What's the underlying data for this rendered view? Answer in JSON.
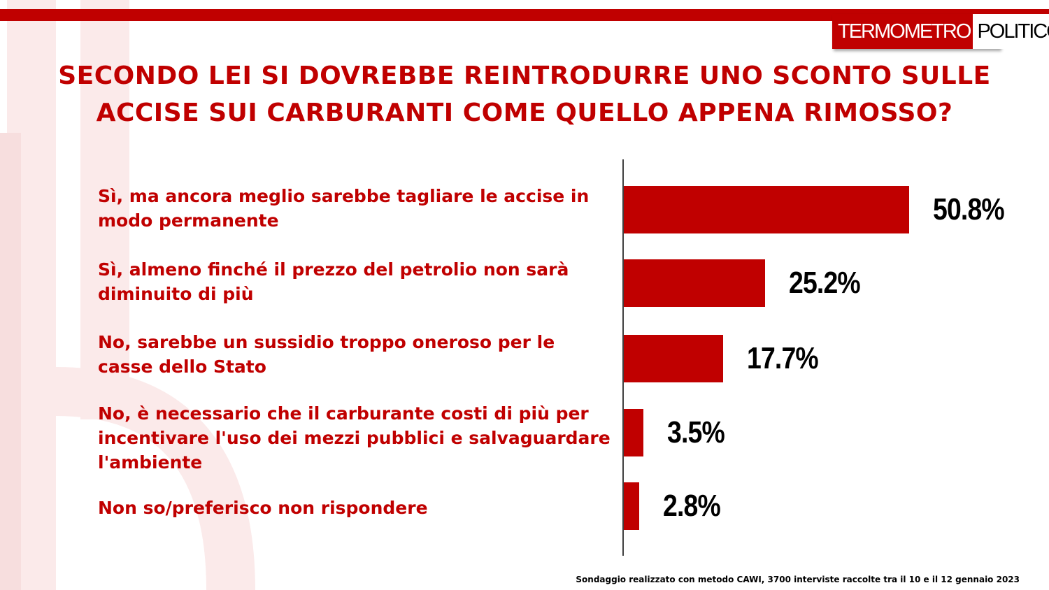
{
  "logo": {
    "part1": "TERMOMETRO",
    "part2": "POLITICO"
  },
  "title": "SECONDO LEI SI DOVREBBE REINTRODURRE UNO SCONTO SULLE ACCISE SUI CARBURANTI COME QUELLO APPENA RIMOSSO?",
  "footnote": "Sondaggio realizzato con metodo CAWI, 3700 interviste raccolte tra il 10 e il 12 gennaio 2023",
  "colors": {
    "bar": "#c00000",
    "title": "#c00000",
    "value": "#000000"
  },
  "chart_data": {
    "type": "bar",
    "orientation": "horizontal",
    "title": "SECONDO LEI SI DOVREBBE REINTRODURRE UNO SCONTO SULLE ACCISE SUI CARBURANTI COME QUELLO APPENA RIMOSSO?",
    "categories": [
      "Sì, ma ancora meglio sarebbe tagliare le accise in modo permanente",
      "Sì, almeno finché il prezzo del petrolio non sarà diminuito di più",
      "No, sarebbe un sussidio troppo oneroso per le casse dello Stato",
      "No, è necessario che il carburante costi di più per incentivare l'uso dei mezzi pubblici e salvaguardare l'ambiente",
      "Non so/preferisco non rispondere"
    ],
    "values": [
      50.8,
      25.2,
      17.7,
      3.5,
      2.8
    ],
    "value_labels": [
      "50.8%",
      "25.2%",
      "17.7%",
      "3.5%",
      "2.8%"
    ],
    "unit": "%",
    "xlim": [
      0,
      50.8
    ]
  }
}
